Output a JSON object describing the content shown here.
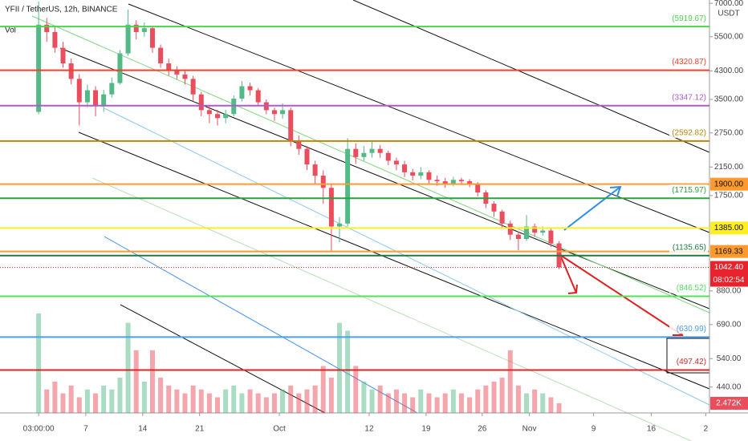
{
  "chart_data": {
    "type": "candlestick",
    "title": "YFII / TetherUS, 12h, BINANCE",
    "volume_title": "Vol",
    "currency": "USDT",
    "log_scale": true,
    "up_color": "#53b987",
    "down_color": "#eb4d5c",
    "x": [
      0,
      2,
      4,
      6,
      8,
      10,
      12,
      14,
      16,
      18,
      20,
      22,
      24,
      26,
      28,
      30,
      32,
      34,
      36,
      38,
      40,
      42,
      44,
      46,
      48,
      50,
      52,
      54,
      56,
      58,
      60,
      62,
      64,
      66,
      68,
      70,
      72,
      74,
      76,
      78,
      80,
      82,
      84,
      86,
      88,
      90,
      92,
      94,
      96,
      98,
      100,
      102,
      104,
      106,
      108,
      110,
      112,
      114,
      116,
      118,
      120,
      122,
      124,
      126,
      128
    ],
    "open": [
      3200,
      6000,
      5690,
      5080,
      4540,
      4060,
      3430,
      3740,
      3330,
      3630,
      3940,
      4880,
      6000,
      5690,
      5850,
      5080,
      4540,
      4300,
      4190,
      4060,
      3630,
      3240,
      3150,
      3060,
      3150,
      3520,
      3850,
      3740,
      3430,
      3240,
      3150,
      3240,
      2590,
      2450,
      2190,
      2020,
      1850,
      1400,
      1430,
      2450,
      2310,
      2380,
      2450,
      2380,
      2250,
      2190,
      2070,
      2020,
      2070,
      1960,
      1940,
      1900,
      1960,
      1940,
      1900,
      1790,
      1650,
      1560,
      1430,
      1320,
      1280,
      1400,
      1340,
      1360,
      1240
    ],
    "high": [
      7100,
      6300,
      5900,
      5300,
      4700,
      4200,
      3900,
      3850,
      3750,
      4100,
      5000,
      6700,
      6200,
      6100,
      5900,
      5200,
      4700,
      4450,
      4350,
      4150,
      3700,
      3350,
      3250,
      3250,
      3600,
      4000,
      3950,
      3800,
      3500,
      3300,
      3400,
      3300,
      2700,
      2500,
      2250,
      2100,
      1900,
      1500,
      2650,
      2550,
      2500,
      2600,
      2520,
      2420,
      2300,
      2250,
      2120,
      2150,
      2100,
      2020,
      1990,
      2000,
      1990,
      1970,
      1930,
      1820,
      1680,
      1580,
      1460,
      1350,
      1520,
      1430,
      1400,
      1380,
      1260
    ],
    "low": [
      3150,
      5300,
      4900,
      4400,
      3900,
      2900,
      3300,
      3100,
      3200,
      3550,
      3900,
      4800,
      5400,
      5500,
      4900,
      4400,
      4150,
      4050,
      3900,
      3450,
      3100,
      2950,
      2900,
      2950,
      3100,
      3450,
      3600,
      3350,
      3150,
      3000,
      3050,
      2500,
      2350,
      2100,
      1900,
      1650,
      1170,
      1250,
      1400,
      2200,
      2250,
      2300,
      2300,
      2180,
      2100,
      2000,
      1950,
      1970,
      1900,
      1880,
      1850,
      1870,
      1890,
      1860,
      1740,
      1600,
      1500,
      1380,
      1270,
      1180,
      1260,
      1300,
      1310,
      1210,
      1030
    ],
    "close": [
      6000,
      5690,
      5080,
      4540,
      4060,
      3430,
      3740,
      3330,
      3630,
      3940,
      4880,
      6000,
      5690,
      5850,
      5080,
      4540,
      4300,
      4190,
      4060,
      3630,
      3240,
      3150,
      3060,
      3150,
      3520,
      3850,
      3740,
      3430,
      3240,
      3150,
      3240,
      2590,
      2450,
      2190,
      2020,
      1850,
      1400,
      1430,
      2450,
      2310,
      2380,
      2450,
      2380,
      2250,
      2190,
      2070,
      2020,
      2070,
      1960,
      1940,
      1900,
      1960,
      1940,
      1900,
      1790,
      1650,
      1560,
      1430,
      1320,
      1280,
      1400,
      1340,
      1360,
      1240,
      1042.4
    ],
    "volume": [
      25.4,
      6,
      8,
      5,
      7,
      4,
      6,
      5,
      7,
      6,
      9,
      23,
      16,
      8,
      16,
      9,
      7,
      6,
      5,
      7,
      6,
      5,
      4,
      6,
      7,
      5,
      6,
      5,
      4,
      5,
      6,
      7,
      5,
      6,
      7,
      12,
      9,
      23,
      21,
      12,
      8,
      6,
      7,
      5,
      6,
      5,
      4,
      6,
      5,
      4,
      5,
      6,
      5,
      4,
      6,
      7,
      8,
      9,
      16,
      7,
      5,
      6,
      5,
      4,
      2.472
    ],
    "volume_label": "2.472K",
    "vlim": [
      0,
      26
    ],
    "xlim": [
      -9.5,
      165
    ],
    "xticks": [
      {
        "value": 0,
        "label": "03:00:00"
      },
      {
        "value": 11.6,
        "label": "7"
      },
      {
        "value": 25.6,
        "label": "14"
      },
      {
        "value": 39.6,
        "label": "21"
      },
      {
        "value": 59.2,
        "label": "Oct"
      },
      {
        "value": 81.3,
        "label": "12"
      },
      {
        "value": 95.3,
        "label": "19"
      },
      {
        "value": 109.1,
        "label": "26"
      },
      {
        "value": 120.7,
        "label": "Nov"
      },
      {
        "value": 136.5,
        "label": "9"
      },
      {
        "value": 150.7,
        "label": "16"
      },
      {
        "value": 164.1,
        "label": "2"
      }
    ],
    "ylim": [
      365,
      7170
    ],
    "yticks": [
      {
        "value": 7000,
        "label": "7000.00"
      },
      {
        "value": 5500,
        "label": "5500.00"
      },
      {
        "value": 4300,
        "label": "4300.00"
      },
      {
        "value": 3500,
        "label": "3500.00"
      },
      {
        "value": 2750,
        "label": "2750.00"
      },
      {
        "value": 2150,
        "label": "2150.00"
      },
      {
        "value": 1750,
        "label": "1750.00"
      },
      {
        "value": 880,
        "label": "880.00"
      },
      {
        "value": 690,
        "label": "690.00"
      },
      {
        "value": 540,
        "label": "540.00"
      },
      {
        "value": 440,
        "label": "440.00"
      }
    ],
    "levels": [
      {
        "value": 5919.67,
        "label": "(5919.67)",
        "color": "#4cd44c"
      },
      {
        "value": 4320.87,
        "label": "(4320.87)",
        "color": "#f0412e"
      },
      {
        "value": 3347.12,
        "label": "(3347.12)",
        "color": "#b05cc8"
      },
      {
        "value": 2592.82,
        "label": "(2592.82)",
        "color": "#b8860b"
      },
      {
        "value": 1900,
        "badge": "1900.00",
        "color": "#ff9a2e"
      },
      {
        "value": 1715.97,
        "label": "(1715.97)",
        "color": "#2ea043"
      },
      {
        "value": 1385,
        "badge": "1385.00",
        "color": "#ffee22"
      },
      {
        "value": 1169.33,
        "badge": "1169.33",
        "color": "#ff9a2e"
      },
      {
        "value": 1135.65,
        "label": "(1135.65)",
        "color": "#1f7a44"
      },
      {
        "value": 846.52,
        "label": "(846.52)",
        "color": "#55e05a"
      },
      {
        "value": 630.99,
        "label": "(630.99)",
        "color": "#4a9ff0"
      },
      {
        "value": 497.42,
        "label": "(497.42)",
        "color": "#d42a2a"
      }
    ],
    "last": {
      "value": 1042.4,
      "badge": "1042.40",
      "countdown": "08:02:54",
      "color": "#e8232d"
    }
  }
}
